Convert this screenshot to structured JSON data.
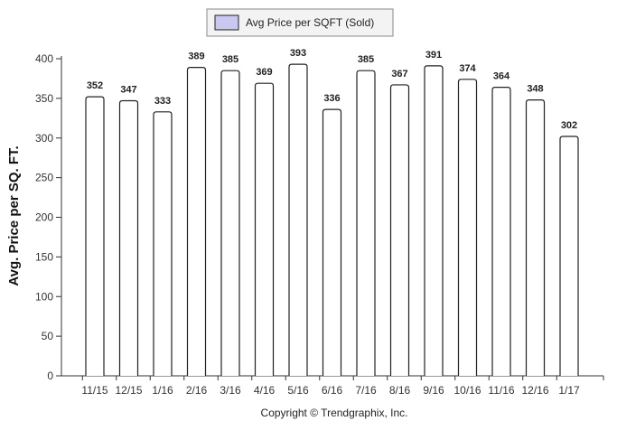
{
  "chart_data": {
    "type": "bar",
    "categories": [
      "11/15",
      "12/15",
      "1/16",
      "2/16",
      "3/16",
      "4/16",
      "5/16",
      "6/16",
      "7/16",
      "8/16",
      "9/16",
      "10/16",
      "11/16",
      "12/16",
      "1/17"
    ],
    "series": [
      {
        "name": "Avg Price per SQFT (Sold)",
        "values": [
          352,
          347,
          333,
          389,
          385,
          369,
          393,
          336,
          385,
          367,
          391,
          374,
          364,
          348,
          302
        ]
      }
    ],
    "title": "",
    "xlabel": "",
    "ylabel": "Avg. Price per SQ. FT.",
    "ylim": [
      0,
      400
    ],
    "yticks": [
      0,
      50,
      100,
      150,
      200,
      250,
      300,
      350,
      400
    ],
    "grid": false,
    "legend_position": "top-center",
    "data_labels": true,
    "bar_color": "#ffffff",
    "bar_border_color": "#222222",
    "legend_swatch_color": "#c8c8f0",
    "copyright": "Copyright © Trendgraphix, Inc."
  }
}
